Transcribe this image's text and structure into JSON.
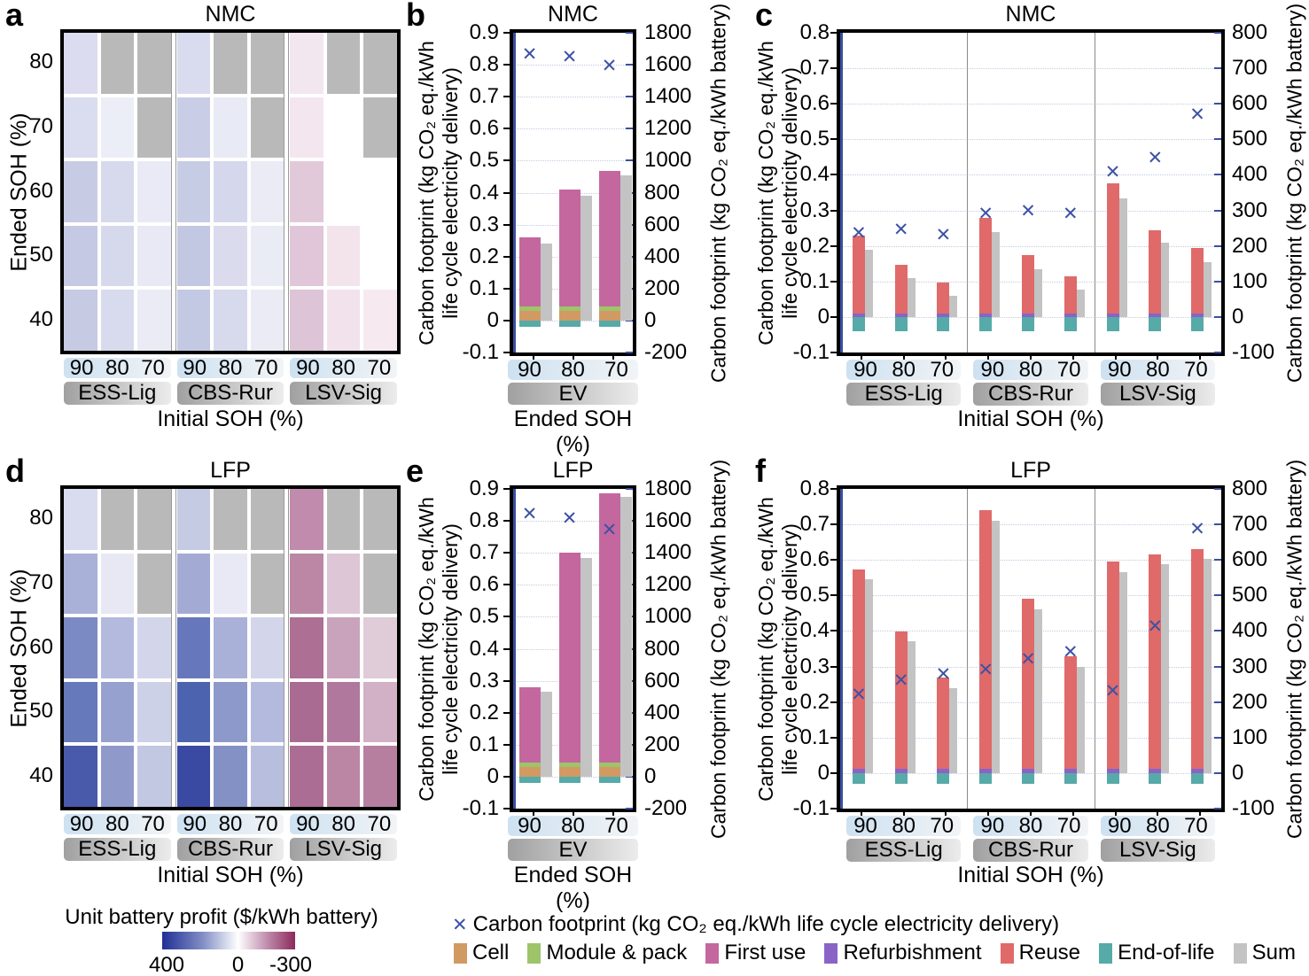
{
  "figure_labels": {
    "a": "a",
    "b": "b",
    "c": "c",
    "d": "d",
    "e": "e",
    "f": "f"
  },
  "colors": {
    "marker": "#3d52a5",
    "axis_spine": "#3a4fa0",
    "grid": "#c3cbe0",
    "frame": "#000000",
    "na_gray": "#b9b9b9",
    "group_separator": "#8a8a8a",
    "series": {
      "cell": "#d29a63",
      "module_pack": "#9ec46a",
      "first_use": "#c4679f",
      "refurbishment": "#8a63c7",
      "reuse": "#e06a6a",
      "end_of_life": "#56aaa8",
      "sum": "#c3c3c3"
    }
  },
  "legend": {
    "marker_symbol": "✕",
    "marker_label": "Carbon footprint (kg CO₂ eq./kWh life cycle electricity delivery)",
    "series": [
      {
        "key": "cell",
        "label": "Cell"
      },
      {
        "key": "module_pack",
        "label": "Module & pack"
      },
      {
        "key": "first_use",
        "label": "First use"
      },
      {
        "key": "refurbishment",
        "label": "Refurbishment"
      },
      {
        "key": "reuse",
        "label": "Reuse"
      },
      {
        "key": "end_of_life",
        "label": "End-of-life"
      },
      {
        "key": "sum",
        "label": "Sum"
      }
    ],
    "colorbar": {
      "title": "Unit battery profit ($/kWh battery)",
      "tick_labels": [
        "400",
        "0",
        "-300"
      ],
      "zero_pos_pct": 57,
      "gradient": [
        {
          "c": "#222f96",
          "p": 0
        },
        {
          "c": "#7f8cc4",
          "p": 30
        },
        {
          "c": "#ffffff",
          "p": 57
        },
        {
          "c": "#bc87a9",
          "p": 80
        },
        {
          "c": "#8c2a5c",
          "p": 100
        }
      ]
    }
  },
  "chart_data": [
    {
      "id": "a",
      "type": "heatmap",
      "title": "NMC",
      "ylabel": "Ended SOH (%)",
      "xlabel": "Initial SOH (%)",
      "row_labels": [
        "80",
        "70",
        "60",
        "50",
        "40"
      ],
      "col_labels": [
        "90",
        "80",
        "70"
      ],
      "groups": [
        "ESS-Lig",
        "CBS-Rur",
        "LSV-Sig"
      ],
      "value_note": "cell colors encode unit battery profit ($/kWh battery); gray = not applicable",
      "cell_colors": [
        [
          "#dbdcef",
          "na",
          "na",
          "#d9dbee",
          "na",
          "na",
          "#f2e7ef",
          "na",
          "na"
        ],
        [
          "#dadcef",
          "#eceef7",
          "na",
          "#c9cde6",
          "#e8eaf5",
          "na",
          "#f4e6ee",
          "#ffffff",
          "na"
        ],
        [
          "#c8cbe4",
          "#d7d9ed",
          "#e9eaf5",
          "#c7cce5",
          "#d5d8ec",
          "#eaebf5",
          "#e2c9da",
          "#ffffff",
          "#ffffff"
        ],
        [
          "#c5c9e3",
          "#d6d8ec",
          "#e8e9f4",
          "#c2c7e2",
          "#dadcee",
          "#e9ebf5",
          "#e0c6d8",
          "#f3e4ec",
          "#ffffff"
        ],
        [
          "#c6cae3",
          "#d8daed",
          "#eaebf5",
          "#c4c9e3",
          "#d7d9ed",
          "#eaebf5",
          "#ddc4d6",
          "#f2e2eb",
          "#f6e9f0"
        ]
      ]
    },
    {
      "id": "b",
      "type": "bars",
      "title": "NMC",
      "xlabel": "Ended SOH (%)",
      "groups": [
        "EV"
      ],
      "categories": [
        "90",
        "80",
        "70"
      ],
      "left_axis": {
        "min": -0.1,
        "max": 0.9,
        "step": 0.1,
        "label_line1": "Carbon footprint (kg CO₂ eq./kWh",
        "label_line2": "life cycle electricity delivery)"
      },
      "right_axis": {
        "min": -200,
        "max": 1800,
        "step": 200,
        "label": "Carbon footprint (kg CO₂ eq./kWh battery)"
      },
      "sum": [
        0.24,
        0.39,
        0.455
      ],
      "segments": [
        {
          "key": "cell",
          "values": [
            0.03,
            0.03,
            0.03
          ]
        },
        {
          "key": "module_pack",
          "values": [
            0.013,
            0.013,
            0.013
          ]
        },
        {
          "key": "first_use",
          "values": [
            0.217,
            0.367,
            0.425
          ]
        },
        {
          "key": "end_of_life",
          "values": [
            -0.02,
            -0.02,
            -0.02
          ]
        }
      ],
      "markers": [
        0.825,
        0.818,
        0.79
      ]
    },
    {
      "id": "c",
      "type": "bars",
      "title": "NMC",
      "xlabel": "Initial SOH (%)",
      "groups": [
        "ESS-Lig",
        "CBS-Rur",
        "LSV-Sig"
      ],
      "categories": [
        "90",
        "80",
        "70"
      ],
      "left_axis": {
        "min": -0.1,
        "max": 0.8,
        "step": 0.1,
        "label_line1": "Carbon footprint (kg CO₂ eq./kWh",
        "label_line2": "life cycle electricity delivery)"
      },
      "right_axis": {
        "min": -100,
        "max": 800,
        "step": 100,
        "label": "Carbon footprint (kg CO₂ eq./kWh battery)"
      },
      "sum": [
        0.19,
        0.11,
        0.06,
        0.24,
        0.135,
        0.078,
        0.335,
        0.21,
        0.155
      ],
      "segments": [
        {
          "key": "refurbishment",
          "values": [
            0.01,
            0.01,
            0.01,
            0.01,
            0.01,
            0.01,
            0.01,
            0.01,
            0.01
          ]
        },
        {
          "key": "reuse",
          "values": [
            0.218,
            0.138,
            0.088,
            0.27,
            0.165,
            0.105,
            0.365,
            0.235,
            0.183
          ]
        },
        {
          "key": "end_of_life",
          "values": [
            -0.04,
            -0.04,
            -0.04,
            -0.04,
            -0.04,
            -0.04,
            -0.04,
            -0.04,
            -0.04
          ]
        }
      ],
      "markers": [
        0.23,
        0.238,
        0.225,
        0.285,
        0.291,
        0.283,
        0.402,
        0.442,
        0.562
      ]
    },
    {
      "id": "d",
      "type": "heatmap",
      "title": "LFP",
      "ylabel": "Ended SOH (%)",
      "xlabel": "Initial SOH (%)",
      "row_labels": [
        "80",
        "70",
        "60",
        "50",
        "40"
      ],
      "col_labels": [
        "90",
        "80",
        "70"
      ],
      "groups": [
        "ESS-Lig",
        "CBS-Rur",
        "LSV-Sig"
      ],
      "value_note": "cell colors encode unit battery profit ($/kWh battery); gray = not applicable",
      "cell_colors": [
        [
          "#d9dbee",
          "na",
          "na",
          "#c6cbe4",
          "na",
          "na",
          "#c08bac",
          "na",
          "na"
        ],
        [
          "#a9b1d8",
          "#e7e8f4",
          "na",
          "#a3abd5",
          "#e8e9f4",
          "na",
          "#bb87a4",
          "#ddc6d6",
          "na"
        ],
        [
          "#7c8ac4",
          "#b3bade",
          "#d3d6eb",
          "#6678bb",
          "#a9b1d8",
          "#d3d6ea",
          "#ad6f93",
          "#c8a3bb",
          "#e0cbd9"
        ],
        [
          "#667abb",
          "#97a1cf",
          "#ccd1e8",
          "#4c64b0",
          "#8e99cb",
          "#b4bade",
          "#aa6b92",
          "#b0789c",
          "#d2b0c5"
        ],
        [
          "#4a5aab",
          "#8f9aca",
          "#c2c7e2",
          "#3a4aa2",
          "#8391c5",
          "#b8bedd",
          "#ab6d93",
          "#bb86a4",
          "#b67fa0"
        ]
      ]
    },
    {
      "id": "e",
      "type": "bars",
      "title": "LFP",
      "xlabel": "Ended SOH (%)",
      "groups": [
        "EV"
      ],
      "categories": [
        "90",
        "80",
        "70"
      ],
      "left_axis": {
        "min": -0.1,
        "max": 0.9,
        "step": 0.1,
        "label_line1": "Carbon footprint (kg CO₂ eq./kWh",
        "label_line2": "life cycle electricity delivery)"
      },
      "right_axis": {
        "min": -200,
        "max": 1800,
        "step": 200,
        "label": "Carbon footprint (kg CO₂ eq./kWh battery)"
      },
      "sum": [
        0.265,
        0.685,
        0.875
      ],
      "segments": [
        {
          "key": "cell",
          "values": [
            0.03,
            0.03,
            0.03
          ]
        },
        {
          "key": "module_pack",
          "values": [
            0.013,
            0.013,
            0.013
          ]
        },
        {
          "key": "first_use",
          "values": [
            0.237,
            0.657,
            0.842
          ]
        },
        {
          "key": "end_of_life",
          "values": [
            -0.02,
            -0.02,
            -0.02
          ]
        }
      ],
      "markers": [
        0.815,
        0.8,
        0.765
      ]
    },
    {
      "id": "f",
      "type": "bars",
      "title": "LFP",
      "xlabel": "Initial SOH (%)",
      "groups": [
        "ESS-Lig",
        "CBS-Rur",
        "LSV-Sig"
      ],
      "categories": [
        "90",
        "80",
        "70"
      ],
      "left_axis": {
        "min": -0.1,
        "max": 0.8,
        "step": 0.1,
        "label_line1": "Carbon footprint (kg CO₂ eq./kWh",
        "label_line2": "life cycle electricity delivery)"
      },
      "right_axis": {
        "min": -100,
        "max": 800,
        "step": 100,
        "label": "Carbon footprint (kg CO₂ eq./kWh battery)"
      },
      "sum": [
        0.545,
        0.37,
        0.24,
        0.71,
        0.46,
        0.298,
        0.565,
        0.588,
        0.602
      ],
      "segments": [
        {
          "key": "refurbishment",
          "values": [
            0.012,
            0.012,
            0.012,
            0.012,
            0.012,
            0.012,
            0.012,
            0.012,
            0.012
          ]
        },
        {
          "key": "reuse",
          "values": [
            0.561,
            0.386,
            0.258,
            0.728,
            0.48,
            0.316,
            0.583,
            0.604,
            0.618
          ]
        },
        {
          "key": "end_of_life",
          "values": [
            -0.03,
            -0.03,
            -0.03,
            -0.03,
            -0.03,
            -0.03,
            -0.03,
            -0.03,
            -0.03
          ]
        }
      ],
      "markers": [
        0.215,
        0.253,
        0.272,
        0.283,
        0.315,
        0.335,
        0.225,
        0.405,
        0.68
      ]
    }
  ]
}
